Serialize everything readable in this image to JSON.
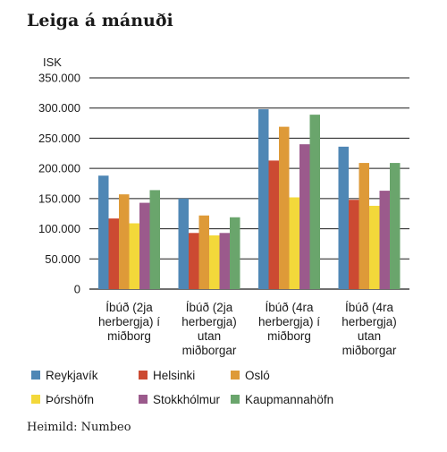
{
  "chart_data": {
    "type": "bar",
    "title": "Leiga á mánuði",
    "ylabel": "ISK",
    "ylim": [
      0,
      350000
    ],
    "yticks": [
      "0",
      "50.000",
      "100.000",
      "150.000",
      "200.000",
      "250.000",
      "300.000",
      "350.000"
    ],
    "categories": [
      [
        "Íbúð (2ja",
        "herbergja) í",
        "miðborg"
      ],
      [
        "Íbúð (2ja",
        "herbergja)",
        "utan",
        "miðborgar"
      ],
      [
        "Íbúð (4ra",
        "herbergja) í",
        "miðborg"
      ],
      [
        "Íbúð (4ra",
        "herbergja)",
        "utan",
        "miðborgar"
      ]
    ],
    "series": [
      {
        "name": "Reykjavík",
        "color": "#4f87b5",
        "values": [
          188000,
          150000,
          298000,
          236000
        ]
      },
      {
        "name": "Helsinki",
        "color": "#cc4a32",
        "values": [
          117000,
          93000,
          213000,
          148000
        ]
      },
      {
        "name": "Osló",
        "color": "#de9a38",
        "values": [
          157000,
          122000,
          269000,
          209000
        ]
      },
      {
        "name": "Þórshöfn",
        "color": "#f3d83a",
        "values": [
          109000,
          89000,
          152000,
          138000
        ]
      },
      {
        "name": "Stokkhólmur",
        "color": "#9b5a8c",
        "values": [
          143000,
          93000,
          240000,
          163000
        ]
      },
      {
        "name": "Kaupmannahöfn",
        "color": "#6aa56c",
        "values": [
          164000,
          119000,
          289000,
          209000
        ]
      }
    ],
    "legend_position": "bottom",
    "grid": true
  },
  "source": "Heimild: Numbeo"
}
